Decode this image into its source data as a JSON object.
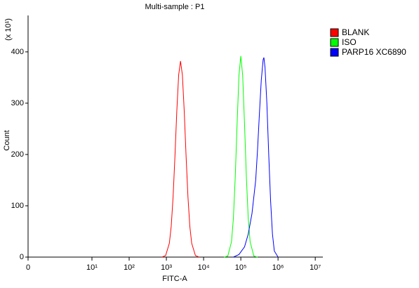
{
  "chart_data": {
    "type": "line",
    "title": "Multi-sample : P1",
    "x_label": "FITC-A",
    "y_label": "Count",
    "y_multiplier": "(x 10¹)",
    "xscale": "log",
    "xlim": [
      0,
      16000000
    ],
    "xticks": [
      0,
      {
        "value": 10,
        "label": "10¹"
      },
      {
        "value": 100,
        "label": "10²"
      },
      {
        "value": 1000,
        "label": "10³"
      },
      {
        "value": 10000,
        "label": "10⁴"
      },
      {
        "value": 100000,
        "label": "10⁵"
      },
      {
        "value": 1000000,
        "label": "10⁶"
      },
      {
        "value": 10000000,
        "label": "10⁷"
      }
    ],
    "ylim": [
      0,
      471
    ],
    "yticks": [
      0,
      100,
      200,
      300,
      400
    ],
    "grid": false,
    "legend": "right",
    "series": [
      {
        "name": "BLANK",
        "color": "#ff0000",
        "x": [
          759,
          955,
          1202,
          1349,
          1514,
          1698,
          1905,
          2138,
          2399,
          2692,
          3020,
          3388,
          3802,
          4266,
          4786,
          6026,
          7586
        ],
        "values": [
          0,
          3,
          27,
          60,
          117,
          196,
          284,
          355,
          382,
          355,
          284,
          196,
          117,
          60,
          27,
          3,
          0
        ]
      },
      {
        "name": "ISO",
        "color": "#00ff00",
        "x": [
          35481,
          44668,
          56234,
          63096,
          70795,
          79433,
          89125,
          100000,
          112202,
          125893,
          141254,
          158489,
          177828,
          223872,
          281838
        ],
        "values": [
          0,
          2,
          30,
          75,
          155,
          259,
          354,
          392,
          354,
          259,
          155,
          75,
          30,
          2,
          0
        ]
      },
      {
        "name": "PARP16 XC6890",
        "color": "#0000ff",
        "x": [
          63096,
          89125,
          125893,
          158489,
          199526,
          251189,
          281838,
          316228,
          354813,
          398107,
          416869,
          446684,
          501187,
          562341,
          630957,
          707946,
          794328,
          1000000
        ],
        "values": [
          0,
          5,
          20,
          45,
          85,
          150,
          210,
          280,
          345,
          385,
          389,
          370,
          300,
          200,
          110,
          45,
          12,
          0
        ]
      }
    ]
  }
}
